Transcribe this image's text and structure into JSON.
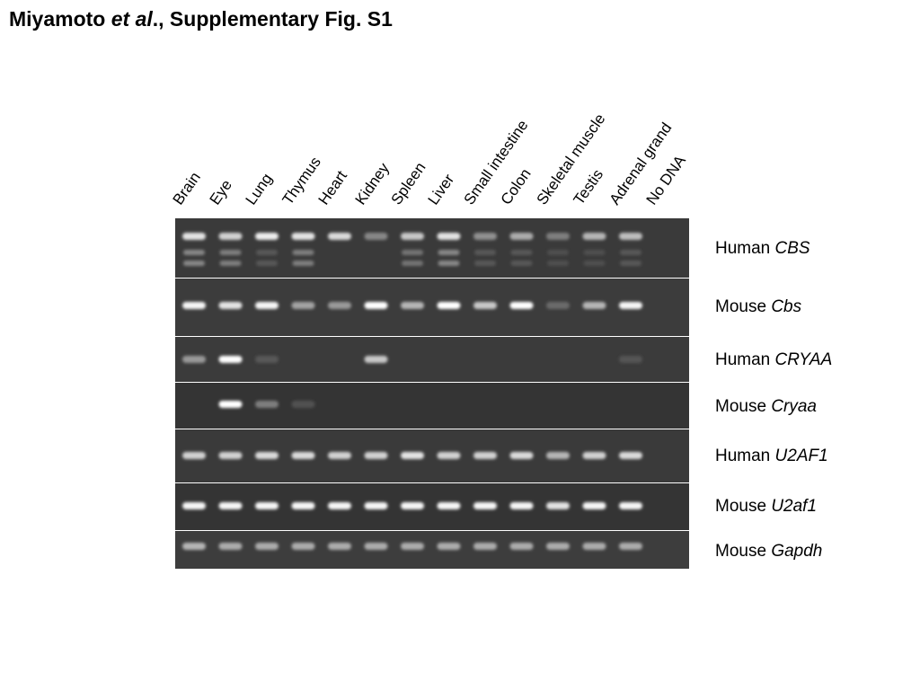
{
  "header": {
    "title_pre": "Miyamoto ",
    "title_italic": "et al",
    "title_post": "., Supplementary Fig. S1"
  },
  "lanes": [
    "Brain",
    "Eye",
    "Lung",
    "Thymus",
    "Heart",
    "Kidney",
    "Spleen",
    "Liver",
    "Small intestine",
    "Colon",
    "Skeletal muscle",
    "Testis",
    "Adrenal grand",
    "No DNA"
  ],
  "gels": [
    {
      "species": "Human",
      "gene": "CBS",
      "background": "#3a3a3a",
      "band_intensity": [
        0.85,
        0.75,
        0.9,
        0.85,
        0.8,
        0.35,
        0.7,
        0.85,
        0.4,
        0.55,
        0.3,
        0.6,
        0.65,
        0.0
      ],
      "secondary_bands": [
        0.35,
        0.3,
        0.1,
        0.3,
        0.0,
        0.0,
        0.25,
        0.35,
        0.1,
        0.1,
        0.05,
        0.05,
        0.1,
        0.0
      ]
    },
    {
      "species": "Mouse",
      "gene": "Cbs",
      "background": "#3c3c3c",
      "band_intensity": [
        0.95,
        0.85,
        0.95,
        0.5,
        0.45,
        1.0,
        0.6,
        1.0,
        0.7,
        1.0,
        0.2,
        0.6,
        0.95,
        0.0
      ]
    },
    {
      "species": "Human",
      "gene": "CRYAA",
      "background": "#3b3b3b",
      "band_intensity": [
        0.45,
        1.0,
        0.1,
        0.0,
        0.0,
        0.7,
        0.0,
        0.0,
        0.0,
        0.0,
        0.0,
        0.0,
        0.08,
        0.0
      ]
    },
    {
      "species": "Mouse",
      "gene": "Cryaa",
      "background": "#343434",
      "band_intensity": [
        0.0,
        1.0,
        0.3,
        0.06,
        0.0,
        0.0,
        0.0,
        0.0,
        0.0,
        0.0,
        0.0,
        0.0,
        0.0,
        0.0
      ]
    },
    {
      "species": "Human",
      "gene": "U2AF1",
      "background": "#3a3a3a",
      "band_intensity": [
        0.75,
        0.75,
        0.8,
        0.8,
        0.75,
        0.75,
        0.85,
        0.75,
        0.75,
        0.8,
        0.6,
        0.75,
        0.8,
        0.0
      ]
    },
    {
      "species": "Mouse",
      "gene": "U2af1",
      "background": "#343434",
      "band_intensity": [
        0.95,
        0.95,
        0.95,
        0.95,
        0.95,
        0.95,
        0.95,
        0.95,
        0.95,
        0.95,
        0.85,
        0.95,
        0.95,
        0.0
      ]
    },
    {
      "species": "Mouse",
      "gene": "Gapdh",
      "background": "#3d3d3d",
      "band_intensity": [
        0.6,
        0.55,
        0.55,
        0.55,
        0.55,
        0.55,
        0.55,
        0.55,
        0.55,
        0.55,
        0.55,
        0.55,
        0.55,
        0.0
      ]
    }
  ]
}
